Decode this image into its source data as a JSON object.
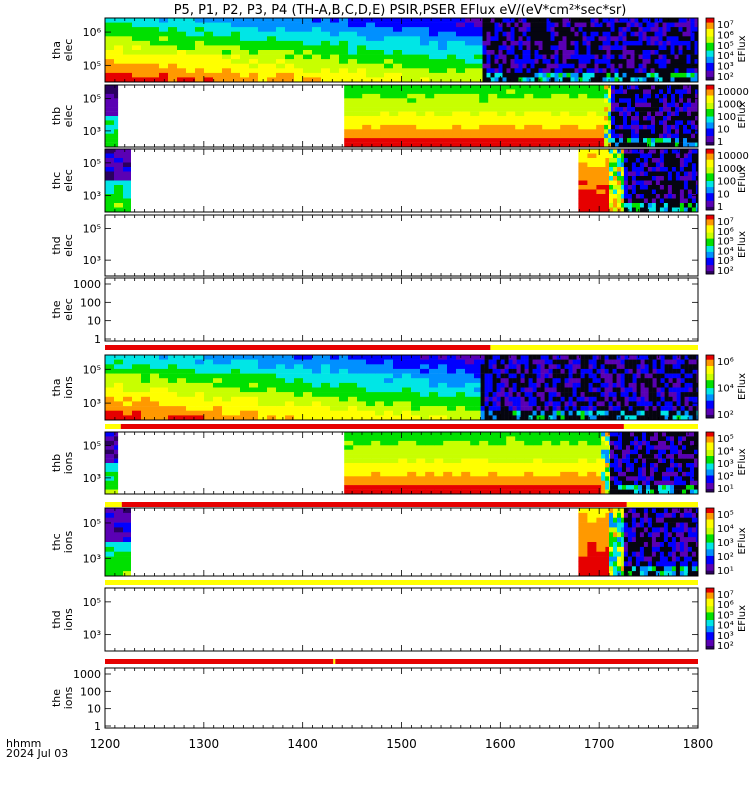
{
  "title": "P5, P1, P2, P3, P4 (TH-A,B,C,D,E) PSIR,PSER EFlux eV/(eV*cm²*sec*sr)",
  "time_axis": {
    "label_line1": "hhmm",
    "label_line2": "2024 Jul 03",
    "range": [
      1200,
      1800
    ],
    "tick_labels": [
      "1200",
      "1300",
      "1400",
      "1500",
      "1600",
      "1700",
      "1800"
    ]
  },
  "colors": {
    "flag_red": "#e60000",
    "flag_yellow": "#ffff00",
    "palette": [
      "#2a0060",
      "#5a00b4",
      "#0000ff",
      "#0090ff",
      "#00e6e6",
      "#00e000",
      "#c8ff00",
      "#ffff00",
      "#ff9900",
      "#e60000"
    ]
  },
  "chart_data": [
    {
      "type": "heatmap",
      "probe": "tha",
      "species": "elec",
      "ylabel_line1": "tha",
      "ylabel_line2": "elec",
      "y_ticks": [
        "10⁶",
        "10⁵"
      ],
      "colorbar": {
        "label": "EFlux",
        "ticks": [
          "10⁷",
          "10⁶",
          "10⁵",
          "10⁴",
          "10³",
          "10²"
        ]
      },
      "segments": [
        {
          "start": 1200,
          "end": 1582,
          "pattern": "gradient"
        },
        {
          "start": 1582,
          "end": 1800,
          "pattern": "noise"
        }
      ]
    },
    {
      "type": "heatmap",
      "probe": "thb",
      "species": "elec",
      "ylabel_line1": "thb",
      "ylabel_line2": "elec",
      "y_ticks": [
        "10⁵",
        "10³"
      ],
      "colorbar": {
        "label": "EFlux",
        "ticks": [
          "10000",
          "1000",
          "100",
          "10",
          "1"
        ]
      },
      "segments": [
        {
          "start": 1200,
          "end": 1213,
          "pattern": "edge"
        },
        {
          "start": 1442,
          "end": 1705,
          "pattern": "steady"
        },
        {
          "start": 1705,
          "end": 1712,
          "pattern": "boundary"
        },
        {
          "start": 1712,
          "end": 1800,
          "pattern": "noise"
        }
      ]
    },
    {
      "type": "heatmap",
      "probe": "thc",
      "species": "elec",
      "ylabel_line1": "thc",
      "ylabel_line2": "elec",
      "y_ticks": [
        "10⁵",
        "10³"
      ],
      "colorbar": {
        "label": "EFlux",
        "ticks": [
          "10000",
          "1000",
          "100",
          "10",
          "1"
        ]
      },
      "segments": [
        {
          "start": 1200,
          "end": 1226,
          "pattern": "edge"
        },
        {
          "start": 1679,
          "end": 1710,
          "pattern": "warm"
        },
        {
          "start": 1710,
          "end": 1725,
          "pattern": "boundary"
        },
        {
          "start": 1725,
          "end": 1800,
          "pattern": "noise"
        }
      ]
    },
    {
      "type": "heatmap",
      "probe": "thd",
      "species": "elec",
      "ylabel_line1": "thd",
      "ylabel_line2": "elec",
      "y_ticks": [
        "10⁵",
        "10³"
      ],
      "colorbar": {
        "label": "EFlux",
        "ticks": [
          "10⁷",
          "10⁶",
          "10⁵",
          "10⁴",
          "10³",
          "10²"
        ]
      },
      "segments": []
    },
    {
      "type": "heatmap",
      "probe": "the",
      "species": "elec",
      "ylabel_line1": "the",
      "ylabel_line2": "elec",
      "y_ticks": [
        "1000",
        "100",
        "10",
        "1"
      ],
      "colorbar": null,
      "segments": []
    },
    {
      "type": "heatmap",
      "probe": "tha",
      "species": "ions",
      "ylabel_line1": "tha",
      "ylabel_line2": "ions",
      "y_ticks": [
        "10⁵",
        "10³"
      ],
      "colorbar": {
        "label": "EFlux",
        "ticks": [
          "10⁶",
          "10⁴",
          "10²"
        ]
      },
      "segments": [
        {
          "start": 1200,
          "end": 1580,
          "pattern": "gradient"
        },
        {
          "start": 1580,
          "end": 1800,
          "pattern": "noise"
        }
      ]
    },
    {
      "type": "heatmap",
      "probe": "thb",
      "species": "ions",
      "ylabel_line1": "thb",
      "ylabel_line2": "ions",
      "y_ticks": [
        "10⁵",
        "10³"
      ],
      "colorbar": {
        "label": "EFlux",
        "ticks": [
          "10⁵",
          "10⁴",
          "10³",
          "10²",
          "10¹"
        ]
      },
      "segments": [
        {
          "start": 1200,
          "end": 1213,
          "pattern": "edge"
        },
        {
          "start": 1442,
          "end": 1702,
          "pattern": "steady"
        },
        {
          "start": 1702,
          "end": 1711,
          "pattern": "boundary"
        },
        {
          "start": 1711,
          "end": 1800,
          "pattern": "noise"
        }
      ]
    },
    {
      "type": "heatmap",
      "probe": "thc",
      "species": "ions",
      "ylabel_line1": "thc",
      "ylabel_line2": "ions",
      "y_ticks": [
        "10⁵",
        "10³"
      ],
      "colorbar": {
        "label": "EFlux",
        "ticks": [
          "10⁵",
          "10⁴",
          "10³",
          "10²",
          "10¹"
        ]
      },
      "segments": [
        {
          "start": 1200,
          "end": 1226,
          "pattern": "edge"
        },
        {
          "start": 1679,
          "end": 1710,
          "pattern": "warm"
        },
        {
          "start": 1710,
          "end": 1725,
          "pattern": "boundary"
        },
        {
          "start": 1725,
          "end": 1800,
          "pattern": "noise"
        }
      ]
    },
    {
      "type": "heatmap",
      "probe": "thd",
      "species": "ions",
      "ylabel_line1": "thd",
      "ylabel_line2": "ions",
      "y_ticks": [
        "10⁵",
        "10³"
      ],
      "colorbar": {
        "label": "EFlux",
        "ticks": [
          "10⁷",
          "10⁶",
          "10⁵",
          "10⁴",
          "10³",
          "10²"
        ]
      },
      "segments": []
    },
    {
      "type": "heatmap",
      "probe": "the",
      "species": "ions",
      "ylabel_line1": "the",
      "ylabel_line2": "ions",
      "y_ticks": [
        "1000",
        "100",
        "10",
        "1"
      ],
      "colorbar": null,
      "segments": []
    }
  ],
  "flag_bars": [
    {
      "after_panel": 4,
      "segments": [
        {
          "start": 1200,
          "end": 1590,
          "color": "red"
        },
        {
          "start": 1590,
          "end": 1800,
          "color": "yellow"
        }
      ]
    },
    {
      "after_panel": 5,
      "segments": [
        {
          "start": 1200,
          "end": 1216,
          "color": "yellow"
        },
        {
          "start": 1216,
          "end": 1725,
          "color": "red"
        },
        {
          "start": 1725,
          "end": 1800,
          "color": "yellow"
        }
      ]
    },
    {
      "after_panel": 6,
      "segments": [
        {
          "start": 1200,
          "end": 1217,
          "color": "yellow"
        },
        {
          "start": 1217,
          "end": 1728,
          "color": "red"
        },
        {
          "start": 1728,
          "end": 1800,
          "color": "yellow"
        }
      ]
    },
    {
      "after_panel": 7,
      "segments": [
        {
          "start": 1200,
          "end": 1800,
          "color": "yellow"
        }
      ]
    },
    {
      "after_panel": 8,
      "segments": [
        {
          "start": 1200,
          "end": 1431,
          "color": "red"
        },
        {
          "start": 1431,
          "end": 1433,
          "color": "yellow"
        },
        {
          "start": 1433,
          "end": 1800,
          "color": "red"
        }
      ]
    }
  ]
}
